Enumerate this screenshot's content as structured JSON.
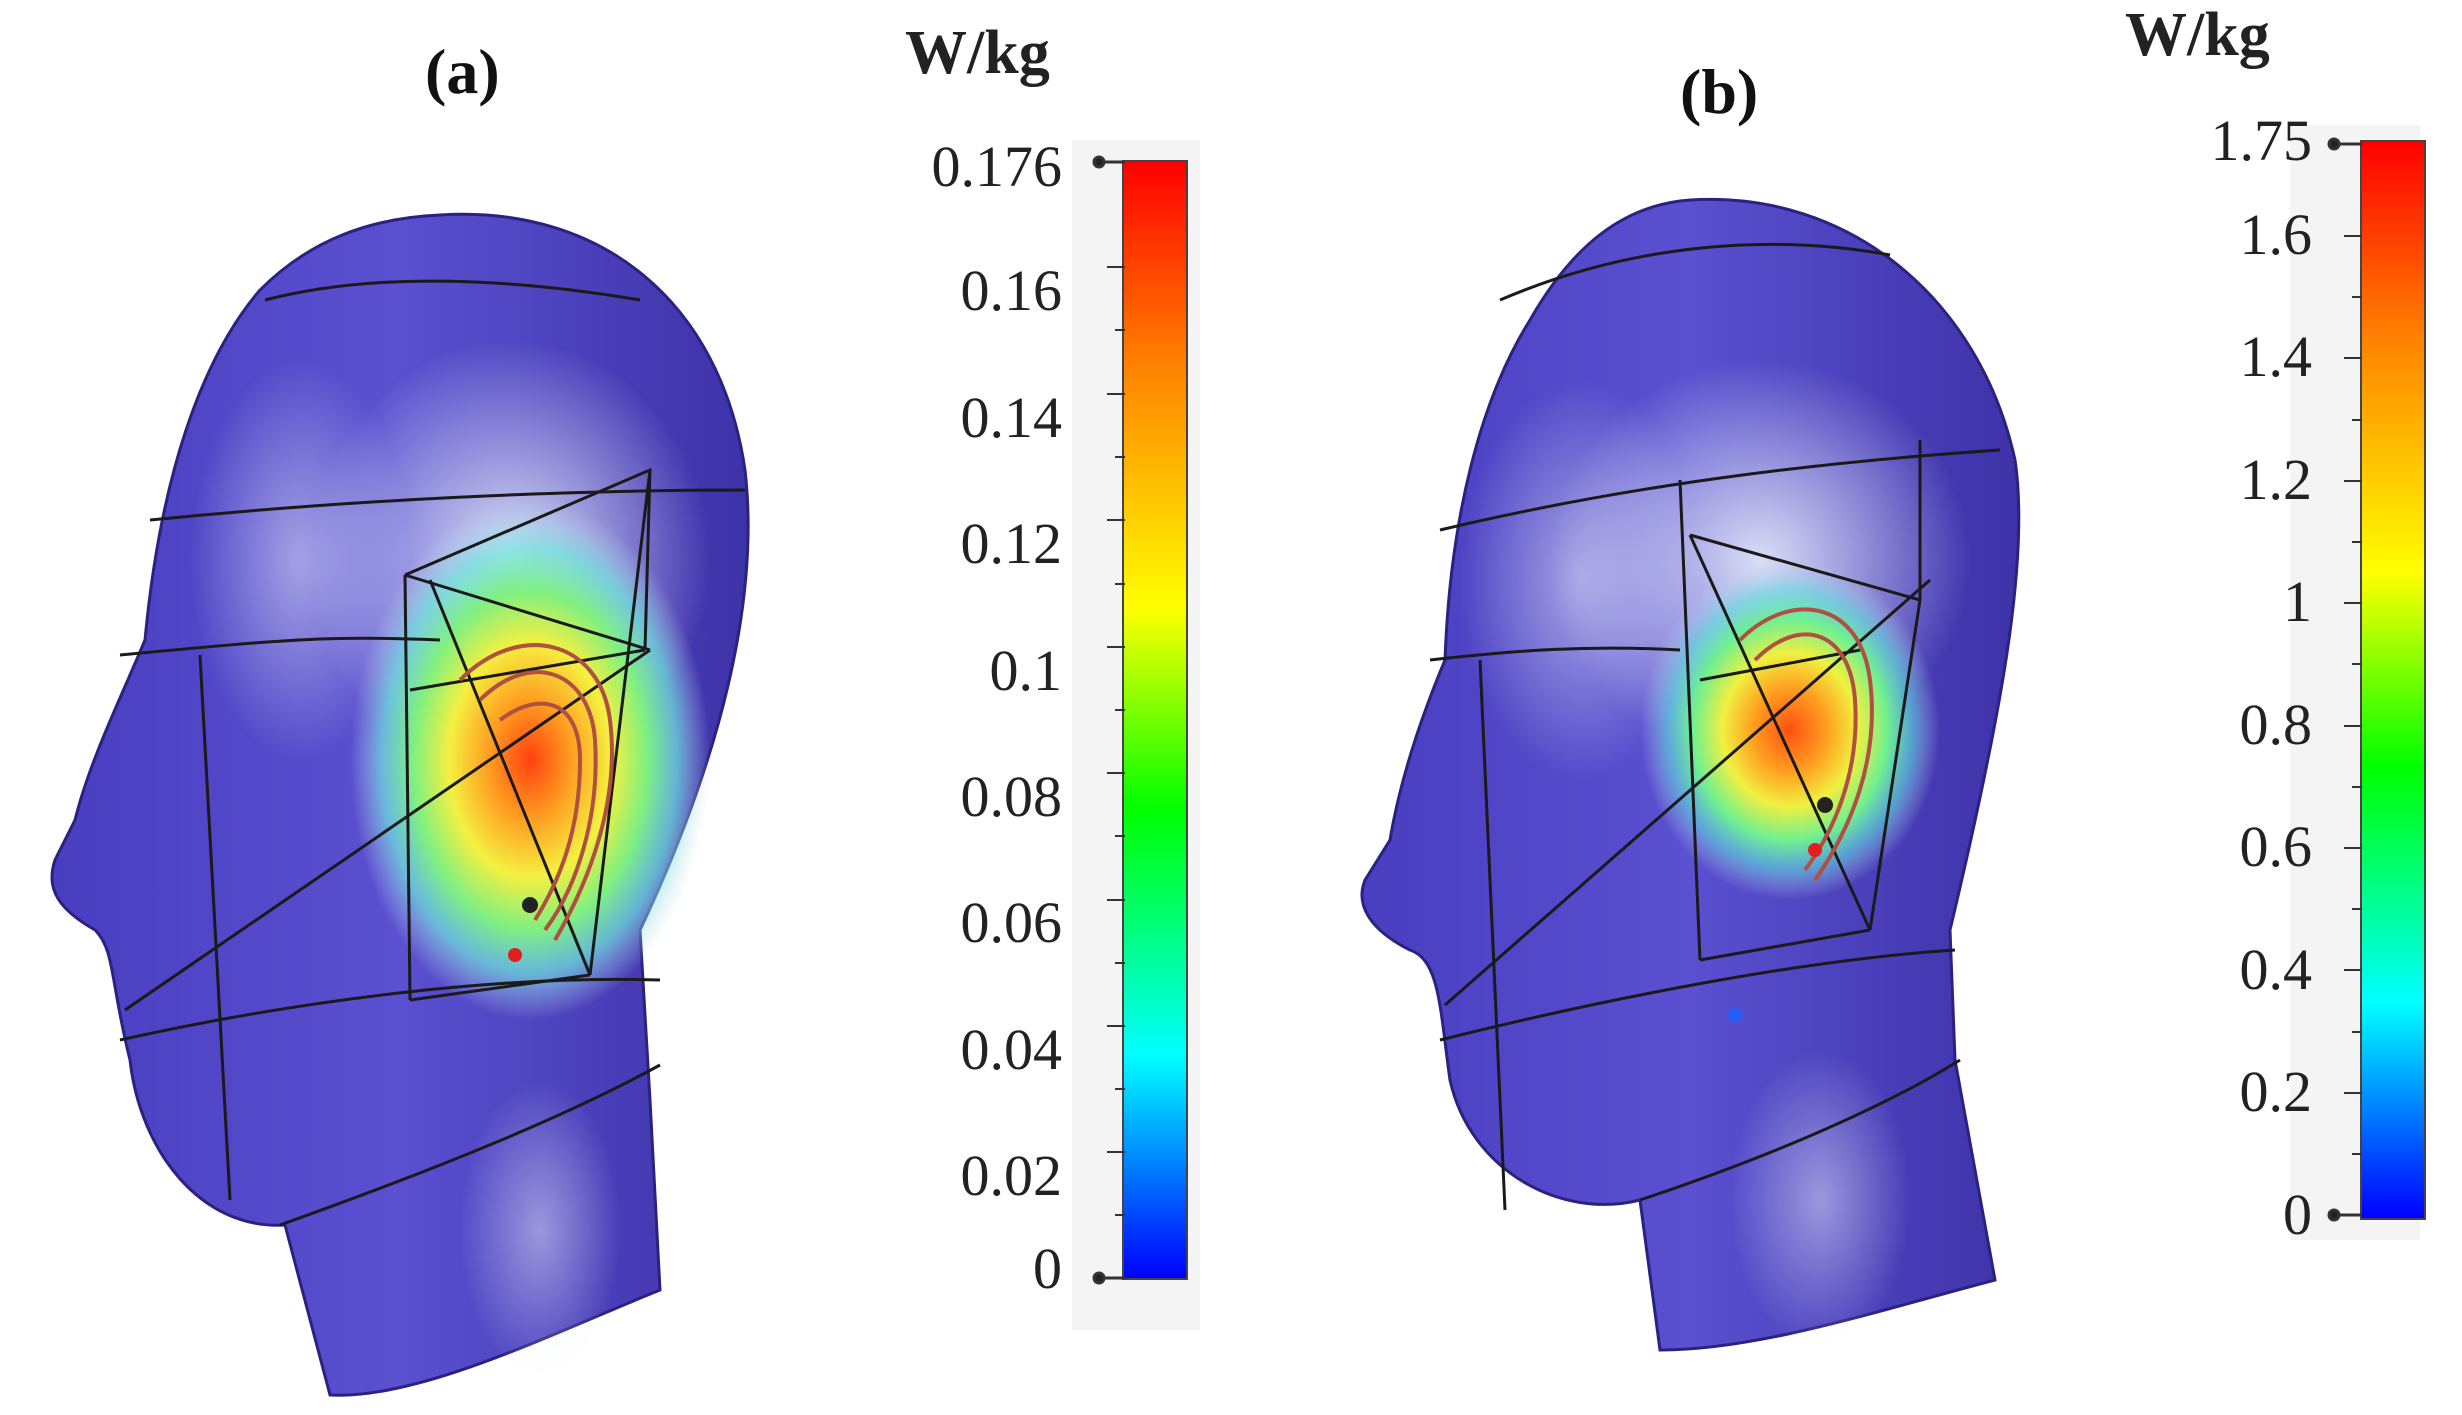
{
  "panels": [
    {
      "label": "(a)",
      "unit": "W/kg",
      "ticks": [
        "0.176",
        "0.16",
        "0.14",
        "0.12",
        "0.1",
        "0.08",
        "0.06",
        "0.04",
        "0.02",
        "0"
      ],
      "colorscale": [
        "#0000ff",
        "#00ffff",
        "#00ff00",
        "#ffff00",
        "#ff8000",
        "#ff0000"
      ]
    },
    {
      "label": "(b)",
      "unit": "W/kg",
      "ticks": [
        "1.75",
        "1.6",
        "1.4",
        "1.2",
        "1",
        "0.8",
        "0.6",
        "0.4",
        "0.2",
        "0"
      ],
      "colorscale": [
        "#0000ff",
        "#00ffff",
        "#00ff00",
        "#ffff00",
        "#ff8000",
        "#ff0000"
      ]
    }
  ]
}
